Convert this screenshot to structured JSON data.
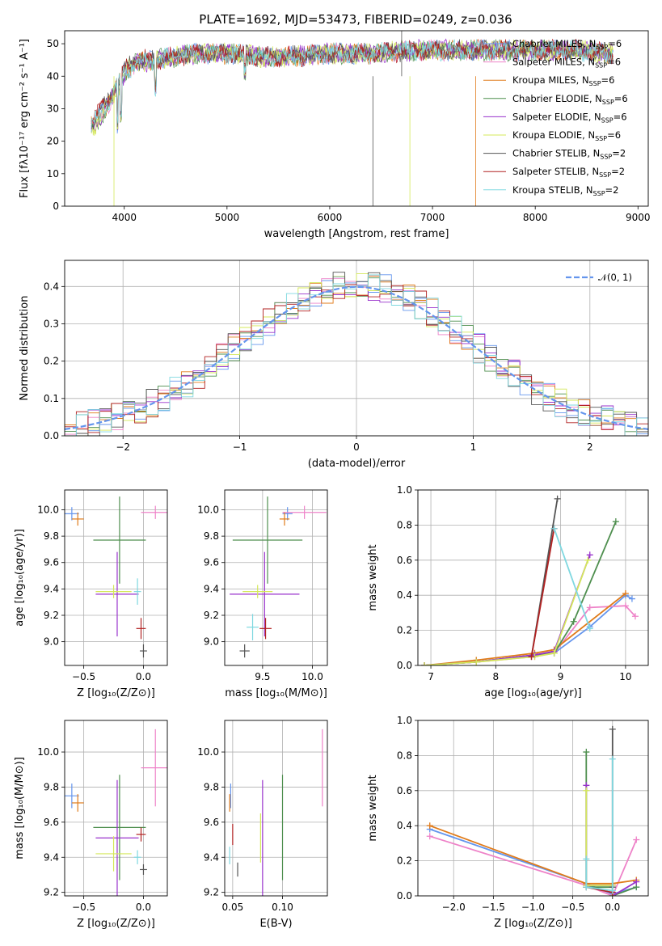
{
  "colors": [
    "#6495ed",
    "#ee82c8",
    "#e07b1a",
    "#4f8f4f",
    "#9932cc",
    "#d4e85a",
    "#555555",
    "#b22222",
    "#7fd8e0"
  ],
  "chart_data": [
    {
      "id": "spectrum",
      "type": "line",
      "title": "PLATE=1692, MJD=53473, FIBERID=0249, z=0.036",
      "xlabel": "wavelength [Angstrom, rest frame]",
      "ylabel": "Flux [fλ10⁻¹⁷ erg cm⁻² s⁻¹ A⁻¹]",
      "xlim": [
        3420,
        9100
      ],
      "ylim": [
        0,
        54
      ],
      "xticks": [
        "4000",
        "5000",
        "6000",
        "7000",
        "8000",
        "9000"
      ],
      "yticks": [
        "0",
        "10",
        "20",
        "30",
        "40",
        "50"
      ],
      "x": [
        3700,
        3800,
        3900,
        4000,
        4100,
        4300,
        4500,
        4700,
        5000,
        5300,
        5600,
        6000,
        6400,
        6800,
        7200,
        7600,
        8000,
        8400,
        8700
      ],
      "series": [
        {
          "name": "Chabrier MILES, N",
          "sub": "SSP",
          "suffix": "=6",
          "values": [
            26,
            30,
            35,
            41,
            44,
            45,
            46,
            47,
            47,
            46,
            46,
            47,
            47,
            48,
            48,
            48,
            48,
            48,
            47
          ]
        },
        {
          "name": "Salpeter MILES, N",
          "sub": "SSP",
          "suffix": "=6",
          "values": [
            25,
            29,
            35,
            41,
            44,
            45,
            46,
            47,
            47,
            46,
            46,
            47,
            47,
            48,
            48,
            48,
            48,
            48,
            47
          ]
        },
        {
          "name": "Kroupa MILES, N",
          "sub": "SSP",
          "suffix": "=6",
          "values": [
            25,
            30,
            35,
            41,
            44,
            45,
            46,
            47,
            47,
            46,
            46,
            47,
            47,
            48,
            48,
            48,
            48,
            48,
            47
          ]
        },
        {
          "name": "Chabrier ELODIE, N",
          "sub": "SSP",
          "suffix": "=6",
          "values": [
            24,
            29,
            34,
            41,
            44,
            45,
            46,
            47,
            47,
            46,
            46,
            47,
            47,
            48,
            48,
            48,
            48,
            48,
            47
          ]
        },
        {
          "name": "Salpeter ELODIE, N",
          "sub": "SSP",
          "suffix": "=6",
          "values": [
            25,
            29,
            34,
            41,
            44,
            45,
            46,
            47,
            47,
            46,
            46,
            47,
            47,
            48,
            48,
            48,
            48,
            48,
            47
          ]
        },
        {
          "name": "Kroupa ELODIE, N",
          "sub": "SSP",
          "suffix": "=6",
          "values": [
            24,
            29,
            34,
            41,
            44,
            45,
            46,
            47,
            47,
            46,
            46,
            47,
            47,
            48,
            48,
            48,
            48,
            48,
            47
          ]
        },
        {
          "name": "Chabrier STELIB, N",
          "sub": "SSP",
          "suffix": "=2",
          "values": [
            26,
            31,
            36,
            42,
            45,
            45,
            46,
            47,
            47,
            46,
            46,
            47,
            47,
            48,
            48,
            48,
            48,
            48,
            47
          ]
        },
        {
          "name": "Salpeter STELIB, N",
          "sub": "SSP",
          "suffix": "=2",
          "values": [
            26,
            31,
            36,
            42,
            45,
            45,
            46,
            47,
            47,
            46,
            46,
            47,
            47,
            48,
            48,
            48,
            48,
            48,
            47
          ]
        },
        {
          "name": "Kroupa STELIB, N",
          "sub": "SSP",
          "suffix": "=2",
          "values": [
            25,
            30,
            35,
            41,
            44,
            45,
            46,
            47,
            47,
            46,
            46,
            47,
            47,
            48,
            48,
            48,
            48,
            48,
            47
          ]
        }
      ],
      "legend": "top-right",
      "grid": false
    },
    {
      "id": "residuals",
      "type": "histogram",
      "xlabel": "(data-model)/error",
      "ylabel": "Normed distribution",
      "xlim": [
        -2.5,
        2.5
      ],
      "ylim": [
        0,
        0.47
      ],
      "xticks": [
        "−2",
        "−1",
        "0",
        "1",
        "2"
      ],
      "yticks": [
        "0.0",
        "0.1",
        "0.2",
        "0.3",
        "0.4"
      ],
      "grid": true,
      "reference_curve": {
        "label": "𝒩(0, 1)",
        "mean": 0,
        "sigma": 1
      },
      "legend": "top-right"
    },
    {
      "id": "age-vs-Z",
      "type": "errorbar",
      "xlabel": "Z [log₁₀(Z/Z⊙)]",
      "ylabel": "age  [log₁₀(age/yr)]",
      "xlim": [
        -0.66,
        0.2
      ],
      "ylim": [
        8.82,
        10.15
      ],
      "xticks": [
        "−0.5",
        "0.0"
      ],
      "yticks": [
        "9.0",
        "9.2",
        "9.4",
        "9.6",
        "9.8",
        "10.0"
      ],
      "grid": true,
      "points": [
        {
          "x": -0.6,
          "y": 9.97,
          "xerr": 0.06,
          "yerr": 0.05,
          "c": 0
        },
        {
          "x": 0.1,
          "y": 9.98,
          "xerr": 0.12,
          "yerr": 0.05,
          "c": 1
        },
        {
          "x": -0.55,
          "y": 9.93,
          "xerr": 0.05,
          "yerr": 0.05,
          "c": 2
        },
        {
          "x": -0.2,
          "y": 9.77,
          "xerr": 0.22,
          "yerr": 0.33,
          "c": 3
        },
        {
          "x": -0.22,
          "y": 9.36,
          "xerr": 0.18,
          "yerr": 0.32,
          "c": 4
        },
        {
          "x": -0.25,
          "y": 9.38,
          "xerr": 0.15,
          "yerr": 0.05,
          "c": 5
        },
        {
          "x": 0.0,
          "y": 8.93,
          "xerr": 0.03,
          "yerr": 0.05,
          "c": 6
        },
        {
          "x": -0.02,
          "y": 9.1,
          "xerr": 0.04,
          "yerr": 0.08,
          "c": 7
        },
        {
          "x": -0.05,
          "y": 9.38,
          "xerr": 0.03,
          "yerr": 0.1,
          "c": 8
        }
      ]
    },
    {
      "id": "age-vs-mass",
      "type": "errorbar",
      "xlabel": "mass [log₁₀(M/M⊙)]",
      "xlim": [
        9.12,
        10.15
      ],
      "ylim": [
        8.82,
        10.15
      ],
      "xticks": [
        "9.5",
        "10.0"
      ],
      "yticks": [
        "9.0",
        "9.2",
        "9.4",
        "9.6",
        "9.8",
        "10.0"
      ],
      "grid": true,
      "points": [
        {
          "x": 9.75,
          "y": 9.97,
          "xerr": 0.05,
          "yerr": 0.05,
          "c": 0
        },
        {
          "x": 9.92,
          "y": 9.98,
          "xerr": 0.22,
          "yerr": 0.05,
          "c": 1
        },
        {
          "x": 9.72,
          "y": 9.93,
          "xerr": 0.05,
          "yerr": 0.05,
          "c": 2
        },
        {
          "x": 9.55,
          "y": 9.77,
          "xerr": 0.35,
          "yerr": 0.33,
          "c": 3
        },
        {
          "x": 9.52,
          "y": 9.36,
          "xerr": 0.35,
          "yerr": 0.32,
          "c": 4
        },
        {
          "x": 9.45,
          "y": 9.38,
          "xerr": 0.15,
          "yerr": 0.05,
          "c": 5
        },
        {
          "x": 9.32,
          "y": 8.93,
          "xerr": 0.05,
          "yerr": 0.05,
          "c": 6
        },
        {
          "x": 9.53,
          "y": 9.1,
          "xerr": 0.06,
          "yerr": 0.08,
          "c": 7
        },
        {
          "x": 9.4,
          "y": 9.11,
          "xerr": 0.06,
          "yerr": 0.1,
          "c": 8
        }
      ]
    },
    {
      "id": "massweight-vs-age",
      "type": "line",
      "xlabel": "age  [log₁₀(age/yr)]",
      "ylabel": "mass weight",
      "xlim": [
        6.8,
        10.35
      ],
      "ylim": [
        0,
        1
      ],
      "xticks": [
        "7",
        "8",
        "9",
        "10"
      ],
      "yticks": [
        "0.0",
        "0.2",
        "0.4",
        "0.6",
        "0.8",
        "1.0"
      ],
      "grid": true,
      "series": [
        {
          "c": 0,
          "x": [
            6.9,
            7.7,
            8.6,
            8.9,
            9.45,
            10.0,
            10.1
          ],
          "values": [
            0.0,
            0.02,
            0.06,
            0.07,
            0.22,
            0.4,
            0.38
          ]
        },
        {
          "c": 1,
          "x": [
            6.9,
            7.7,
            8.6,
            8.9,
            9.45,
            10.0,
            10.15
          ],
          "values": [
            0.0,
            0.02,
            0.05,
            0.07,
            0.33,
            0.34,
            0.28
          ]
        },
        {
          "c": 2,
          "x": [
            6.9,
            7.7,
            8.6,
            8.9,
            10.0
          ],
          "values": [
            0.0,
            0.03,
            0.07,
            0.09,
            0.41
          ]
        },
        {
          "c": 3,
          "x": [
            6.9,
            7.7,
            8.6,
            8.9,
            9.2,
            9.85
          ],
          "values": [
            0.0,
            0.02,
            0.06,
            0.07,
            0.25,
            0.82
          ]
        },
        {
          "c": 4,
          "x": [
            6.9,
            7.7,
            8.6,
            8.9,
            9.45
          ],
          "values": [
            0.0,
            0.02,
            0.06,
            0.08,
            0.63
          ]
        },
        {
          "c": 5,
          "x": [
            6.9,
            7.7,
            8.6,
            8.9,
            9.42
          ],
          "values": [
            0.0,
            0.02,
            0.05,
            0.07,
            0.6
          ]
        },
        {
          "c": 6,
          "x": [
            8.55,
            8.95
          ],
          "values": [
            0.05,
            0.95
          ]
        },
        {
          "c": 7,
          "x": [
            8.55,
            8.9
          ],
          "values": [
            0.05,
            0.78
          ]
        },
        {
          "c": 8,
          "x": [
            8.9,
            9.45
          ],
          "values": [
            0.78,
            0.21
          ]
        }
      ]
    },
    {
      "id": "mass-vs-Z",
      "type": "errorbar",
      "xlabel": "Z [log₁₀(Z/Z⊙)]",
      "ylabel": "mass [log₁₀(M/M⊙)]",
      "xlim": [
        -0.66,
        0.2
      ],
      "ylim": [
        9.18,
        10.18
      ],
      "xticks": [
        "−0.5",
        "0.0"
      ],
      "yticks": [
        "9.2",
        "9.4",
        "9.6",
        "9.8",
        "10.0"
      ],
      "grid": true,
      "points": [
        {
          "x": -0.6,
          "y": 9.75,
          "xerr": 0.06,
          "yerr": 0.07,
          "c": 0
        },
        {
          "x": 0.1,
          "y": 9.91,
          "xerr": 0.12,
          "yerr": 0.22,
          "c": 1
        },
        {
          "x": -0.55,
          "y": 9.71,
          "xerr": 0.05,
          "yerr": 0.05,
          "c": 2
        },
        {
          "x": -0.2,
          "y": 9.57,
          "xerr": 0.22,
          "yerr": 0.3,
          "c": 3
        },
        {
          "x": -0.22,
          "y": 9.51,
          "xerr": 0.18,
          "yerr": 0.33,
          "c": 4
        },
        {
          "x": -0.25,
          "y": 9.42,
          "xerr": 0.15,
          "yerr": 0.1,
          "c": 5
        },
        {
          "x": 0.0,
          "y": 9.33,
          "xerr": 0.03,
          "yerr": 0.03,
          "c": 6
        },
        {
          "x": -0.02,
          "y": 9.53,
          "xerr": 0.04,
          "yerr": 0.04,
          "c": 7
        },
        {
          "x": -0.05,
          "y": 9.4,
          "xerr": 0.03,
          "yerr": 0.04,
          "c": 8
        }
      ]
    },
    {
      "id": "mass-vs-EBV",
      "type": "errorbar",
      "xlabel": "E(B-V)",
      "xlim": [
        0.042,
        0.145
      ],
      "ylim": [
        9.18,
        10.18
      ],
      "xticks": [
        "0.05",
        "0.10"
      ],
      "yticks": [
        "9.2",
        "9.4",
        "9.6",
        "9.8",
        "10.0"
      ],
      "grid": true,
      "points": [
        {
          "x": 0.048,
          "y": 9.75,
          "xerr": 0,
          "yerr": 0.07,
          "c": 0
        },
        {
          "x": 0.14,
          "y": 9.91,
          "xerr": 0,
          "yerr": 0.22,
          "c": 1
        },
        {
          "x": 0.047,
          "y": 9.71,
          "xerr": 0,
          "yerr": 0.05,
          "c": 2
        },
        {
          "x": 0.1,
          "y": 9.57,
          "xerr": 0,
          "yerr": 0.3,
          "c": 3
        },
        {
          "x": 0.08,
          "y": 9.51,
          "xerr": 0,
          "yerr": 0.33,
          "c": 4
        },
        {
          "x": 0.078,
          "y": 9.51,
          "xerr": 0,
          "yerr": 0.14,
          "c": 5
        },
        {
          "x": 0.055,
          "y": 9.33,
          "xerr": 0,
          "yerr": 0.04,
          "c": 6
        },
        {
          "x": 0.05,
          "y": 9.53,
          "xerr": 0,
          "yerr": 0.06,
          "c": 7
        },
        {
          "x": 0.047,
          "y": 9.41,
          "xerr": 0,
          "yerr": 0.05,
          "c": 8
        }
      ]
    },
    {
      "id": "massweight-vs-Z",
      "type": "line",
      "xlabel": "Z [log₁₀(Z/Z⊙)]",
      "ylabel": "mass weight",
      "xlim": [
        -2.45,
        0.45
      ],
      "ylim": [
        0,
        1
      ],
      "xticks": [
        "−2.0",
        "−1.5",
        "−1.0",
        "−0.5",
        "0.0"
      ],
      "yticks": [
        "0.0",
        "0.2",
        "0.4",
        "0.6",
        "0.8",
        "1.0"
      ],
      "grid": true,
      "series": [
        {
          "c": 0,
          "x": [
            -2.3,
            -0.33,
            0.0,
            0.3
          ],
          "values": [
            0.38,
            0.07,
            0.01,
            0.05
          ]
        },
        {
          "c": 1,
          "x": [
            -2.3,
            -0.33,
            0.0,
            0.3
          ],
          "values": [
            0.34,
            0.06,
            0.0,
            0.32
          ]
        },
        {
          "c": 2,
          "x": [
            -2.3,
            -0.33,
            0.0,
            0.3
          ],
          "values": [
            0.4,
            0.07,
            0.07,
            0.09
          ]
        },
        {
          "c": 3,
          "x": [
            -0.33,
            -0.33,
            0.0,
            0.0,
            0.3
          ],
          "values": [
            0.82,
            0.05,
            0.05,
            0.0,
            0.05
          ]
        },
        {
          "c": 4,
          "x": [
            -0.33,
            -0.33,
            0.0,
            0.0,
            0.3
          ],
          "values": [
            0.63,
            0.06,
            0.06,
            0.0,
            0.08
          ]
        },
        {
          "c": 5,
          "x": [
            -0.33,
            -0.33,
            0.0,
            0.0
          ],
          "values": [
            0.6,
            0.06,
            0.06,
            0.0
          ]
        },
        {
          "c": 6,
          "x": [
            0.0,
            0.0
          ],
          "values": [
            0.05,
            0.95
          ]
        },
        {
          "c": 7,
          "x": [
            -0.33,
            0.0
          ],
          "values": [
            0.05,
            0.02
          ]
        },
        {
          "c": 8,
          "x": [
            -0.33,
            -0.33,
            0.0,
            0.0
          ],
          "values": [
            0.21,
            0.05,
            0.03,
            0.78
          ]
        }
      ]
    }
  ]
}
